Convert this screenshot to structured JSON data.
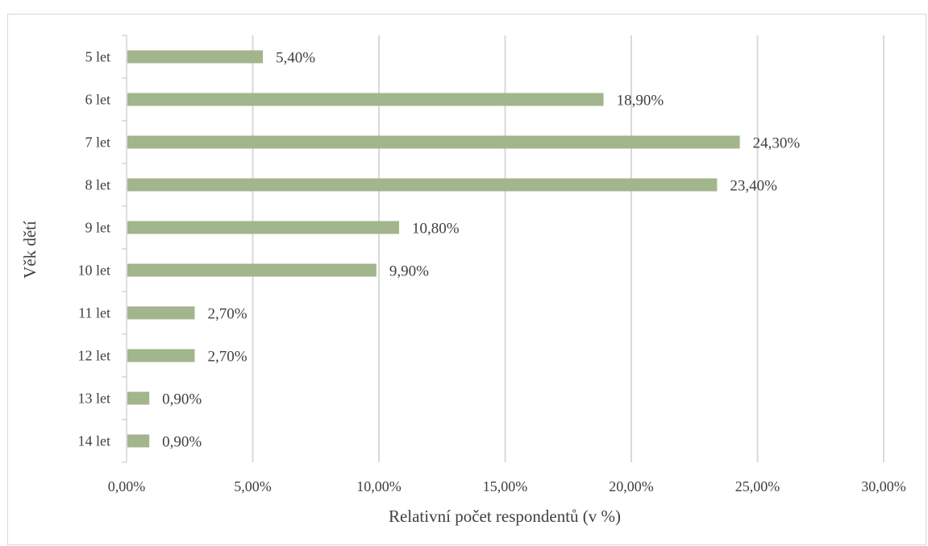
{
  "chart_data": {
    "type": "bar",
    "orientation": "horizontal",
    "categories": [
      "5 let",
      "6 let",
      "7 let",
      "8 let",
      "9 let",
      "10 let",
      "11 let",
      "12 let",
      "13 let",
      "14 let"
    ],
    "values": [
      5.4,
      18.9,
      24.3,
      23.4,
      10.8,
      9.9,
      2.7,
      2.7,
      0.9,
      0.9
    ],
    "data_labels": [
      "5,40%",
      "18,90%",
      "24,30%",
      "23,40%",
      "10,80%",
      "9,90%",
      "2,70%",
      "2,70%",
      "0,90%",
      "0,90%"
    ],
    "xticks": [
      0,
      5,
      10,
      15,
      20,
      25,
      30
    ],
    "xtick_labels": [
      "0,00%",
      "5,00%",
      "10,00%",
      "15,00%",
      "20,00%",
      "25,00%",
      "30,00%"
    ],
    "xlim": [
      0,
      30
    ],
    "xlabel": "Relativní počet respondentů (v %)",
    "ylabel": "Věk dětí",
    "title": "",
    "grid": "vertical",
    "legend": "none",
    "colors": {
      "bar": "#a2b58c",
      "grid": "#d9d9d9",
      "axis": "#bfbfbf",
      "text": "#404040"
    }
  }
}
